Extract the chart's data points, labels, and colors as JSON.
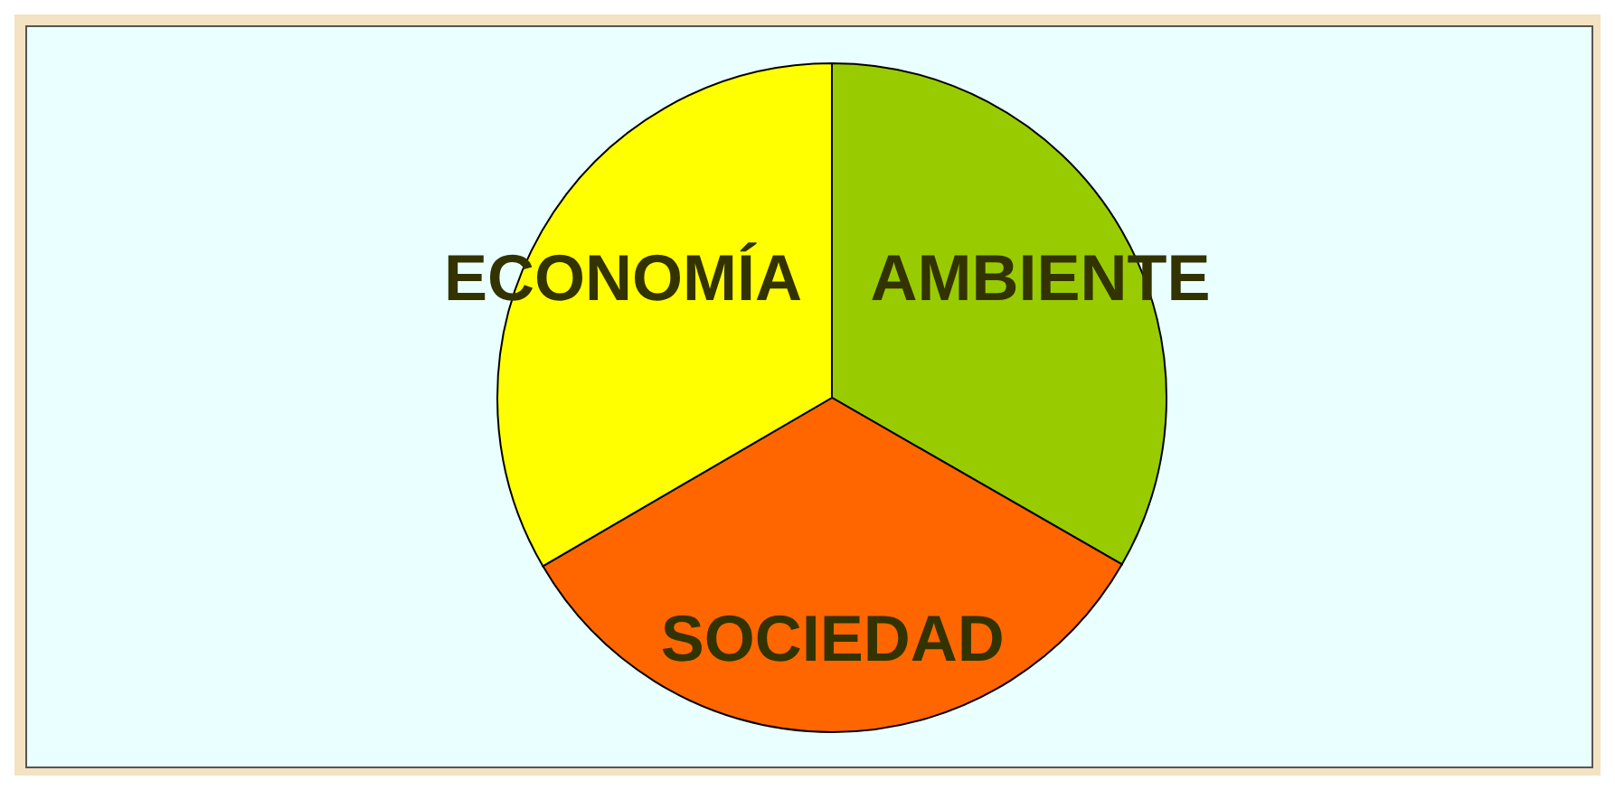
{
  "chart_data": {
    "type": "pie",
    "categories": [
      "AMBIENTE",
      "SOCIEDAD",
      "ECONOMÍA"
    ],
    "values": [
      33.3,
      33.3,
      33.4
    ],
    "colors": [
      "#99cc00",
      "#ff6600",
      "#ffff00"
    ],
    "legend": false
  }
}
